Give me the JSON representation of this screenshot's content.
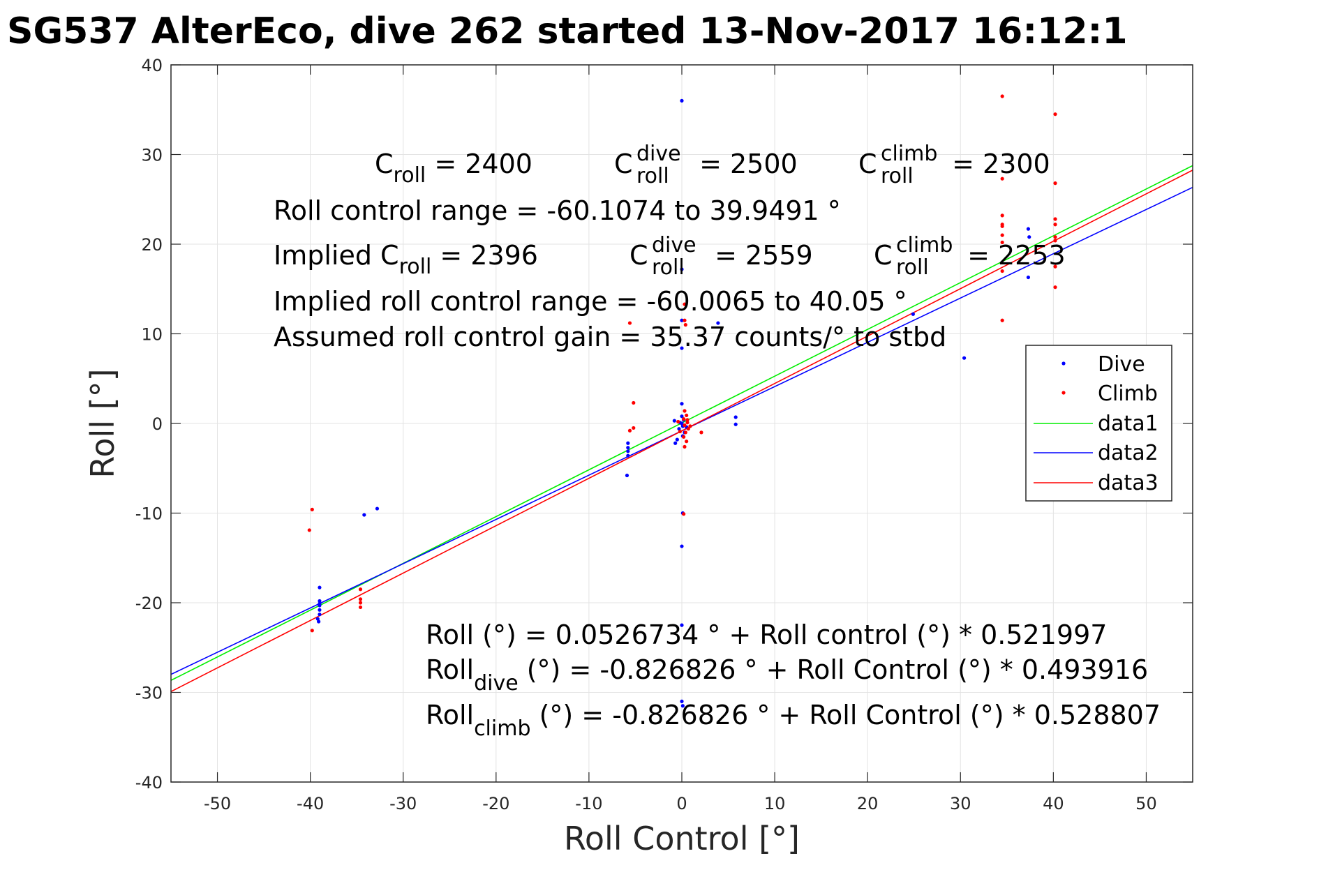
{
  "chart_data": {
    "type": "scatter",
    "title": "SG537 AlterEco, dive 262 started 13-Nov-2017 16:12:1",
    "xlabel": "Roll Control [°]",
    "ylabel": "Roll [°]",
    "xlim": [
      -55,
      55
    ],
    "ylim": [
      -40,
      40
    ],
    "xticks": [
      -50,
      -40,
      -30,
      -20,
      -10,
      0,
      10,
      20,
      30,
      40,
      50
    ],
    "yticks": [
      -40,
      -30,
      -20,
      -10,
      0,
      10,
      20,
      30,
      40
    ],
    "grid": true,
    "legend_position": "right",
    "series": [
      {
        "name": "Dive",
        "kind": "points",
        "color": "#0000ff",
        "points": [
          [
            0,
            36
          ],
          [
            0,
            17.2
          ],
          [
            0,
            11.5
          ],
          [
            0,
            8.4
          ],
          [
            0,
            2.2
          ],
          [
            0,
            0.8
          ],
          [
            0.2,
            0.4
          ],
          [
            0,
            0
          ],
          [
            0.1,
            -0.3
          ],
          [
            -0.3,
            -0.6
          ],
          [
            0.3,
            -1
          ],
          [
            0.1,
            -1.4
          ],
          [
            -0.5,
            -1.8
          ],
          [
            -0.7,
            -2.2
          ],
          [
            0.1,
            -10
          ],
          [
            0,
            -13.7
          ],
          [
            0,
            -22.5
          ],
          [
            0,
            -31
          ],
          [
            0.1,
            -31.5
          ],
          [
            -0.8,
            0.3
          ],
          [
            -0.2,
            0.1
          ],
          [
            0.5,
            -0.4
          ],
          [
            3.9,
            11.2
          ],
          [
            5.8,
            0.7
          ],
          [
            5.8,
            -0.1
          ],
          [
            -5.8,
            -2.2
          ],
          [
            -5.8,
            -2.7
          ],
          [
            -5.8,
            -3.1
          ],
          [
            -5.8,
            -3.6
          ],
          [
            -5.9,
            -5.8
          ],
          [
            -39,
            -18.3
          ],
          [
            -39,
            -19.8
          ],
          [
            -39,
            -20.3
          ],
          [
            -39,
            -20.8
          ],
          [
            -39,
            -21.3
          ],
          [
            -39.2,
            -21.8
          ],
          [
            -39.1,
            -22.1
          ],
          [
            -39,
            -20.1
          ],
          [
            -34.2,
            -10.2
          ],
          [
            -32.8,
            -9.5
          ],
          [
            24.9,
            12.2
          ],
          [
            30.4,
            7.3
          ],
          [
            37.3,
            21.7
          ],
          [
            37.4,
            20.8
          ],
          [
            37.3,
            16.3
          ]
        ]
      },
      {
        "name": "Climb",
        "kind": "points",
        "color": "#ff0000",
        "points": [
          [
            34.5,
            36.5
          ],
          [
            40.2,
            34.5
          ],
          [
            34.5,
            27.3
          ],
          [
            40.2,
            26.8
          ],
          [
            34.5,
            23.2
          ],
          [
            34.5,
            22.2
          ],
          [
            34.5,
            22
          ],
          [
            34.5,
            21
          ],
          [
            34.5,
            20.2
          ],
          [
            34.5,
            17
          ],
          [
            34.5,
            11.5
          ],
          [
            40.2,
            22.8
          ],
          [
            40.2,
            22.2
          ],
          [
            40.2,
            20.8
          ],
          [
            40.2,
            20.4
          ],
          [
            40.2,
            17.5
          ],
          [
            40.2,
            15.2
          ],
          [
            -39.8,
            -9.6
          ],
          [
            -40.1,
            -11.9
          ],
          [
            -39.8,
            -23.1
          ],
          [
            -34.6,
            -18.5
          ],
          [
            -34.6,
            -19.6
          ],
          [
            -34.6,
            -20
          ],
          [
            -34.6,
            -20.5
          ],
          [
            -5.2,
            2.3
          ],
          [
            -5.6,
            11.2
          ],
          [
            -5.2,
            -0.5
          ],
          [
            -5.6,
            -0.8
          ],
          [
            0.3,
            13.3
          ],
          [
            0.3,
            11.5
          ],
          [
            0.4,
            11
          ],
          [
            0.3,
            1.4
          ],
          [
            0.5,
            0.9
          ],
          [
            0.2,
            0.5
          ],
          [
            0.6,
            0.1
          ],
          [
            0.3,
            -0.2
          ],
          [
            0.7,
            -0.6
          ],
          [
            0.4,
            -1
          ],
          [
            0.2,
            -1.5
          ],
          [
            0.5,
            -2
          ],
          [
            0.3,
            -2.6
          ],
          [
            0.2,
            -10.1
          ],
          [
            2.1,
            -1
          ],
          [
            -0.4,
            0.2
          ],
          [
            0.9,
            -0.3
          ],
          [
            -0.2,
            -0.9
          ],
          [
            0.6,
            0.4
          ]
        ]
      },
      {
        "name": "data1",
        "kind": "line",
        "color": "#00ee00",
        "intercept": 0.0526734,
        "slope": 0.521997
      },
      {
        "name": "data2",
        "kind": "line",
        "color": "#0000ff",
        "intercept": -0.826826,
        "slope": 0.493916
      },
      {
        "name": "data3",
        "kind": "line",
        "color": "#ff0000",
        "intercept": -0.826826,
        "slope": 0.528807
      }
    ],
    "annotations": {
      "c_roll": {
        "label": "C",
        "sub": "roll",
        "text": " = 2400"
      },
      "c_roll_dive": {
        "label": "C",
        "sup": "dive",
        "sub": "roll",
        "text": " = 2500"
      },
      "c_roll_climb": {
        "label": "C",
        "sup": "climb",
        "sub": "roll",
        "text": " = 2300"
      },
      "roll_range": "Roll control range = -60.1074 to 39.9491 °",
      "implied_c_roll": {
        "label": "Implied C",
        "sub": "roll",
        "text": " = 2396"
      },
      "implied_c_roll_dive": {
        "label": "C",
        "sup": "dive",
        "sub": "roll",
        "text": " = 2559"
      },
      "implied_c_roll_climb": {
        "label": "C",
        "sup": "climb",
        "sub": "roll",
        "text": " = 2253"
      },
      "implied_range": "Implied roll control range = -60.0065 to 40.05 °",
      "gain": "Assumed roll control gain = 35.37 counts/° to stbd",
      "fit_all": "Roll (°) = 0.0526734 ° + Roll control (°) * 0.521997",
      "fit_dive": {
        "label": "Roll",
        "sub": "dive",
        "text": " (°) = -0.826826 ° + Roll Control (°) * 0.493916"
      },
      "fit_climb": {
        "label": "Roll",
        "sub": "climb",
        "text": " (°) = -0.826826 ° + Roll Control (°) * 0.528807"
      }
    }
  }
}
